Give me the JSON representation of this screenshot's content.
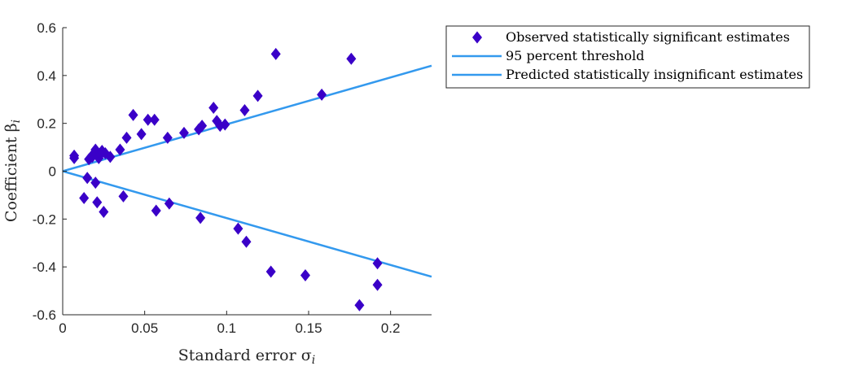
{
  "chart_data": {
    "type": "scatter",
    "xlabel": "Standard error σ",
    "xlabel_sub": "i",
    "ylabel": "Coefficient β",
    "ylabel_sub": "i",
    "xlim": [
      0,
      0.225
    ],
    "ylim": [
      -0.6,
      0.6
    ],
    "x_ticks": [
      0,
      0.05,
      0.1,
      0.15,
      0.2
    ],
    "x_tick_labels": [
      "0",
      "0.05",
      "0.1",
      "0.15",
      "0.2"
    ],
    "y_ticks": [
      -0.6,
      -0.4,
      -0.2,
      0,
      0.2,
      0.4,
      0.6
    ],
    "y_tick_labels": [
      "-0.6",
      "-0.4",
      "-0.2",
      "0",
      "0.2",
      "0.4",
      "0.6"
    ],
    "grid": false,
    "legend_position": "outside-top-right",
    "colors": {
      "marker": "#3a00c8",
      "line": "#3399ee"
    },
    "series": [
      {
        "name": "Observed statistically significant estimates",
        "kind": "scatter",
        "marker": "diamond",
        "points": [
          [
            0.007,
            0.065
          ],
          [
            0.007,
            0.055
          ],
          [
            0.013,
            -0.112
          ],
          [
            0.015,
            -0.028
          ],
          [
            0.016,
            0.05
          ],
          [
            0.018,
            0.06
          ],
          [
            0.019,
            0.075
          ],
          [
            0.02,
            0.09
          ],
          [
            0.02,
            -0.048
          ],
          [
            0.021,
            -0.13
          ],
          [
            0.022,
            0.055
          ],
          [
            0.023,
            0.07
          ],
          [
            0.024,
            0.085
          ],
          [
            0.025,
            -0.17
          ],
          [
            0.026,
            0.075
          ],
          [
            0.029,
            0.06
          ],
          [
            0.035,
            0.09
          ],
          [
            0.037,
            -0.105
          ],
          [
            0.039,
            0.14
          ],
          [
            0.043,
            0.235
          ],
          [
            0.048,
            0.155
          ],
          [
            0.052,
            0.215
          ],
          [
            0.056,
            0.215
          ],
          [
            0.057,
            -0.165
          ],
          [
            0.064,
            0.14
          ],
          [
            0.065,
            -0.135
          ],
          [
            0.074,
            0.16
          ],
          [
            0.083,
            0.175
          ],
          [
            0.084,
            -0.195
          ],
          [
            0.085,
            0.19
          ],
          [
            0.092,
            0.265
          ],
          [
            0.094,
            0.21
          ],
          [
            0.096,
            0.19
          ],
          [
            0.099,
            0.195
          ],
          [
            0.107,
            -0.24
          ],
          [
            0.111,
            0.255
          ],
          [
            0.112,
            -0.295
          ],
          [
            0.119,
            0.315
          ],
          [
            0.127,
            -0.42
          ],
          [
            0.13,
            0.49
          ],
          [
            0.148,
            -0.435
          ],
          [
            0.158,
            0.32
          ],
          [
            0.176,
            0.47
          ],
          [
            0.181,
            -0.56
          ],
          [
            0.192,
            -0.385
          ],
          [
            0.192,
            -0.475
          ]
        ]
      },
      {
        "name": "95 percent threshold",
        "kind": "line",
        "points": [
          [
            0,
            0
          ],
          [
            0.225,
            0.441
          ]
        ]
      },
      {
        "name": "Predicted statistically insignificant estimates",
        "kind": "line",
        "points": [
          [
            0,
            0
          ],
          [
            0.225,
            -0.441
          ]
        ]
      }
    ]
  }
}
